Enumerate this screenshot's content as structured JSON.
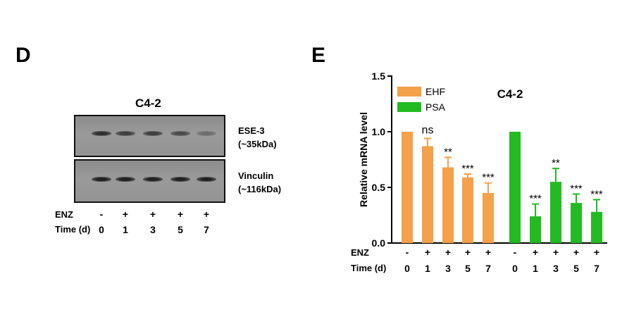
{
  "panel_d": {
    "letter": "D",
    "title": "C4-2",
    "blots": [
      {
        "label": "ESE-3",
        "sublabel": "(~35kDa)",
        "intensities": [
          0.85,
          0.72,
          0.72,
          0.62,
          0.35
        ]
      },
      {
        "label": "Vinculin",
        "sublabel": "(~116kDa)",
        "intensities": [
          0.95,
          0.95,
          0.95,
          0.95,
          0.95
        ]
      }
    ],
    "enz_label": "ENZ",
    "time_label": "Time (d)",
    "enz": [
      "-",
      "+",
      "+",
      "+",
      "+"
    ],
    "time": [
      "0",
      "1",
      "3",
      "5",
      "7"
    ]
  },
  "panel_e": {
    "letter": "E",
    "enz_label": "ENZ",
    "time_label": "Time (d)",
    "enz": [
      "-",
      "+",
      "+",
      "+",
      "+",
      "-",
      "+",
      "+",
      "+",
      "+"
    ],
    "time": [
      "0",
      "1",
      "3",
      "5",
      "7",
      "0",
      "1",
      "3",
      "5",
      "7"
    ]
  },
  "chart_data": {
    "type": "bar",
    "title": "C4-2",
    "ylabel": "Relative mRNA level",
    "ylim": [
      0.0,
      1.5
    ],
    "yticks": [
      "0.0",
      "0.5",
      "1.0",
      "1.5"
    ],
    "legend_position": "top-left",
    "series": [
      {
        "name": "EHF",
        "color": "#f5a04a",
        "values": [
          1.0,
          0.87,
          0.68,
          0.59,
          0.45
        ],
        "errors": [
          0.0,
          0.07,
          0.09,
          0.03,
          0.09
        ],
        "significance": [
          "",
          "ns",
          "**",
          "***",
          "***"
        ]
      },
      {
        "name": "PSA",
        "color": "#22bb22",
        "values": [
          1.0,
          0.24,
          0.55,
          0.36,
          0.28
        ],
        "errors": [
          0.0,
          0.11,
          0.12,
          0.08,
          0.11
        ],
        "significance": [
          "",
          "***",
          "**",
          "***",
          "***"
        ]
      }
    ]
  }
}
